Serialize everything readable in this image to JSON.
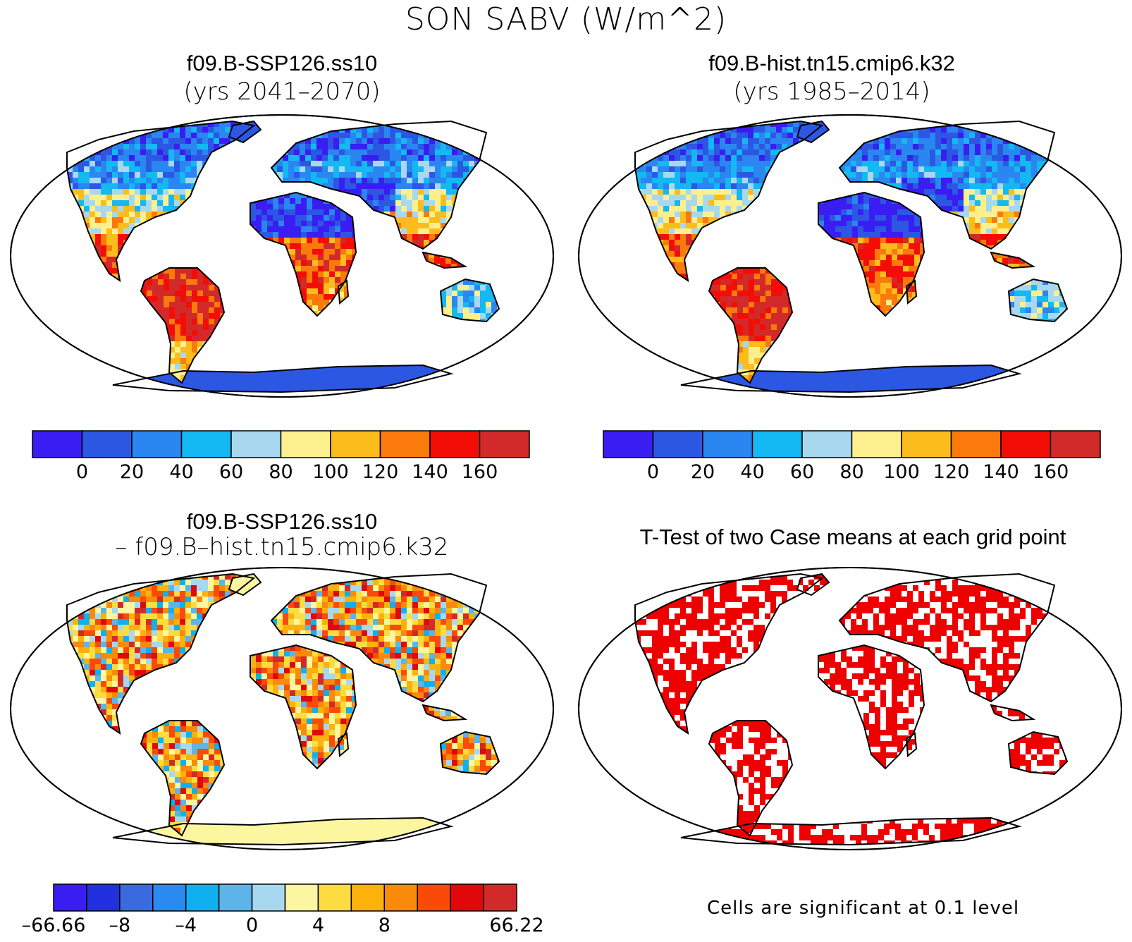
{
  "main_title": "SON SABV (W/m^2)",
  "panels": {
    "top_left": {
      "title": "f09.B-SSP126.ss10",
      "subtitle": "(yrs 2041–2070)"
    },
    "top_right": {
      "title": "f09.B-hist.tn15.cmip6.k32",
      "subtitle": "(yrs 1985–2014)"
    },
    "bottom_left": {
      "title": "f09.B-SSP126.ss10",
      "subtitle": "– f09.B–hist.tn15.cmip6.k32"
    },
    "bottom_right": {
      "title": "T-Test of two Case means at each grid point",
      "note": "Cells are significant at 0.1 level"
    }
  },
  "colorbar_main": {
    "colors": [
      "#3a1df2",
      "#2c57e3",
      "#2a86f0",
      "#14b8f2",
      "#a8d8f0",
      "#fcf08e",
      "#fcbd1c",
      "#fa7a0c",
      "#f20e06",
      "#d22a2a"
    ],
    "labels": [
      "0",
      "20",
      "40",
      "60",
      "80",
      "100",
      "120",
      "140",
      "160"
    ]
  },
  "colorbar_diff": {
    "colors": [
      "#3a1df2",
      "#2230e0",
      "#3a6ae0",
      "#2a8af0",
      "#10b0f0",
      "#5cb4e8",
      "#a8d8f0",
      "#fcf6a0",
      "#fcdc40",
      "#fcb20a",
      "#fa8a0a",
      "#fa4a08",
      "#e00808",
      "#d22a2a"
    ],
    "labels": [
      "–66.66",
      "–8",
      "–4",
      "0",
      "4",
      "8",
      "66.22"
    ],
    "label_positions": [
      0,
      2,
      4,
      6,
      8,
      10,
      14
    ]
  },
  "colors": {
    "significance": "#ee0000",
    "low_albedo_ice": "#2c57e3"
  },
  "icons": {
    "map_projection": "robinson-ellipse"
  }
}
